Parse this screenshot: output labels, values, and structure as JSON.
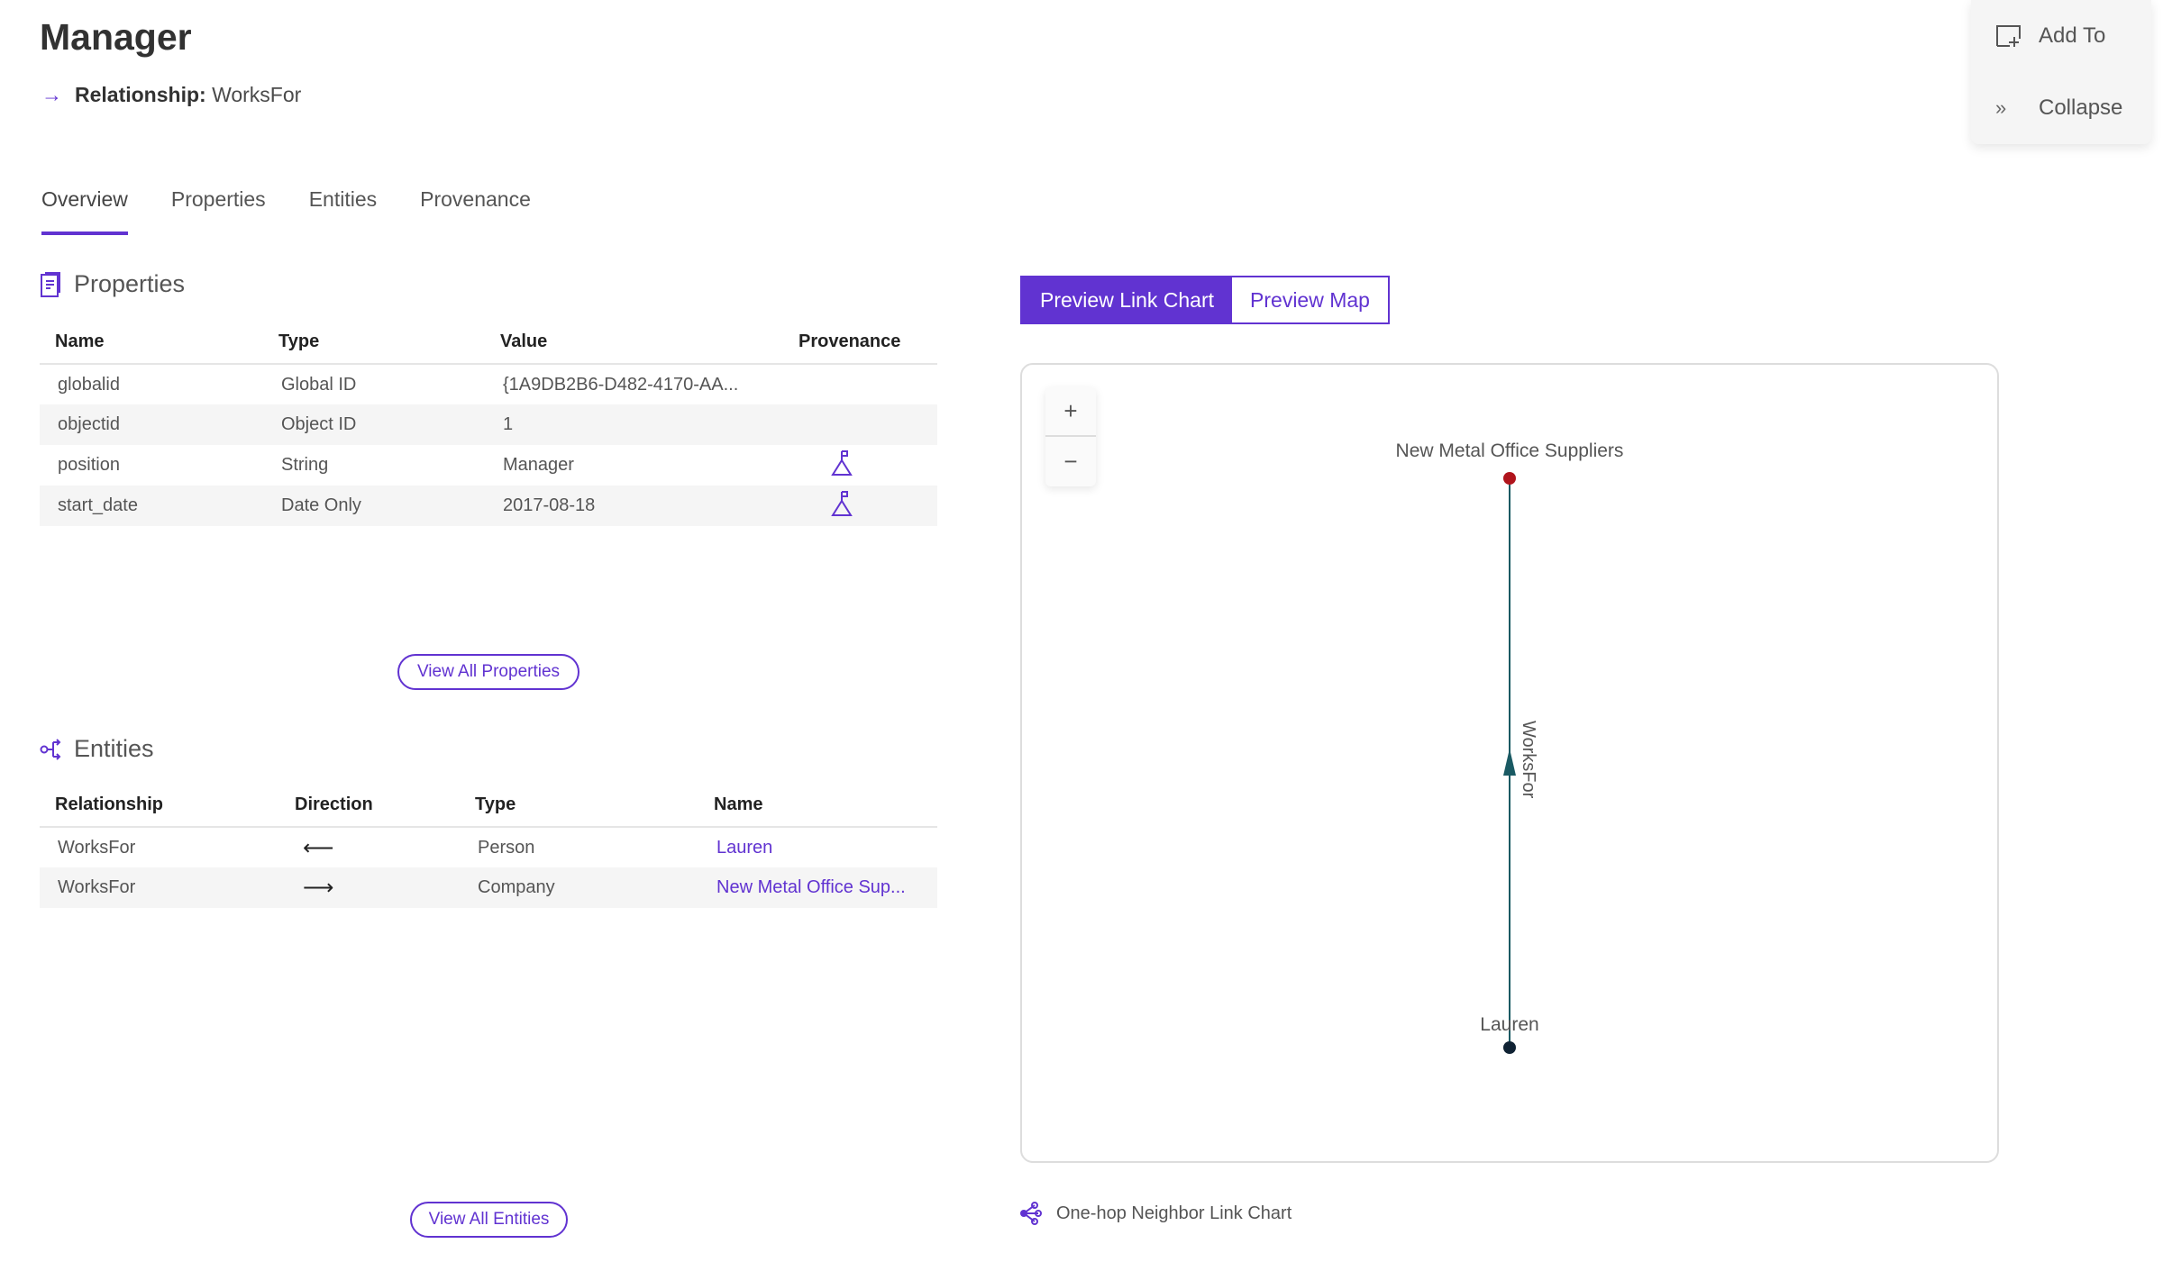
{
  "header": {
    "title": "Manager",
    "relationship_label": "Relationship:",
    "relationship_value": "WorksFor"
  },
  "tabs": [
    {
      "label": "Overview",
      "active": true
    },
    {
      "label": "Properties"
    },
    {
      "label": "Entities"
    },
    {
      "label": "Provenance"
    }
  ],
  "properties": {
    "title": "Properties",
    "columns": [
      "Name",
      "Type",
      "Value",
      "Provenance"
    ],
    "rows": [
      {
        "name": "globalid",
        "type": "Global ID",
        "value": "{1A9DB2B6-D482-4170-AA...",
        "provenance": false
      },
      {
        "name": "objectid",
        "type": "Object ID",
        "value": "1",
        "provenance": false
      },
      {
        "name": "position",
        "type": "String",
        "value": "Manager",
        "provenance": true
      },
      {
        "name": "start_date",
        "type": "Date Only",
        "value": "2017-08-18",
        "provenance": true
      }
    ],
    "view_all": "View All Properties"
  },
  "entities": {
    "title": "Entities",
    "columns": [
      "Relationship",
      "Direction",
      "Type",
      "Name"
    ],
    "rows": [
      {
        "relationship": "WorksFor",
        "direction": "⟵",
        "type": "Person",
        "name": "Lauren"
      },
      {
        "relationship": "WorksFor",
        "direction": "⟶",
        "type": "Company",
        "name": "New Metal Office Sup..."
      }
    ],
    "view_all": "View All Entities"
  },
  "preview": {
    "link_chart": "Preview Link Chart",
    "map": "Preview Map",
    "active": "link_chart"
  },
  "link_chart": {
    "zoom_in": "+",
    "zoom_out": "−",
    "nodes": [
      {
        "label": "New Metal Office Suppliers",
        "color": "#b0141c"
      },
      {
        "label": "Lauren",
        "color": "#0f2233"
      }
    ],
    "edge": {
      "label": "WorksFor",
      "from": "Lauren",
      "to": "New Metal Office Suppliers",
      "color": "#1a5a63"
    },
    "caption": "One-hop Neighbor Link Chart"
  },
  "panel": {
    "add_to": "Add To",
    "collapse": "Collapse"
  },
  "colors": {
    "accent": "#6133d1"
  }
}
